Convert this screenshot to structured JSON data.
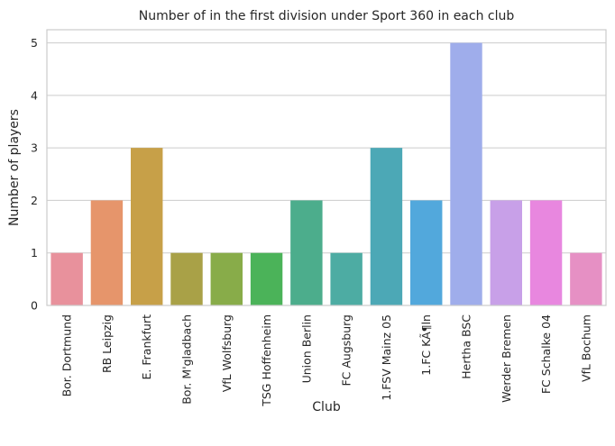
{
  "chart_data": {
    "type": "bar",
    "title": "Number of in the first division under Sport 360 in each club",
    "xlabel": "Club",
    "ylabel": "Number of players",
    "categories": [
      "Bor. Dortmund",
      "RB Leipzig",
      "E. Frankfurt",
      "Bor. M'gladbach",
      "VfL Wolfsburg",
      "TSG Hoffenheim",
      "Union Berlin",
      "FC Augsburg",
      "1.FSV Mainz 05",
      "1.FC KÃ¶ln",
      "Hertha BSC",
      "Werder Bremen",
      "FC Schalke 04",
      "VfL Bochum"
    ],
    "values": [
      1,
      2,
      3,
      1,
      1,
      1,
      2,
      1,
      3,
      2,
      5,
      2,
      2,
      1
    ],
    "colors": [
      "#e8919c",
      "#e6956b",
      "#c7a048",
      "#a9a147",
      "#88ac49",
      "#4bb359",
      "#4cad8c",
      "#4daca3",
      "#4ca8b6",
      "#52a8dc",
      "#9fadeb",
      "#c8a0e8",
      "#e887df",
      "#e690c4"
    ],
    "ylim": [
      0,
      5.25
    ],
    "yticks": [
      0,
      1,
      2,
      3,
      4,
      5
    ],
    "grid": true
  }
}
